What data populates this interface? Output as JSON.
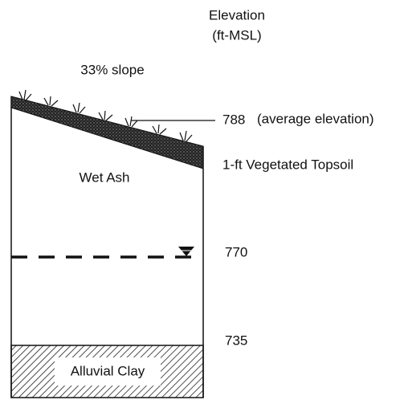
{
  "header": {
    "title": "Elevation",
    "units": "(ft-MSL)"
  },
  "layers": {
    "slope": "33% slope",
    "topsoil": "1-ft Vegetated Topsoil",
    "ash": "Wet Ash",
    "clay": "Alluvial Clay"
  },
  "elevations": {
    "surface": {
      "value": 788,
      "note": "(average elevation)"
    },
    "water": 770,
    "base": 735
  }
}
